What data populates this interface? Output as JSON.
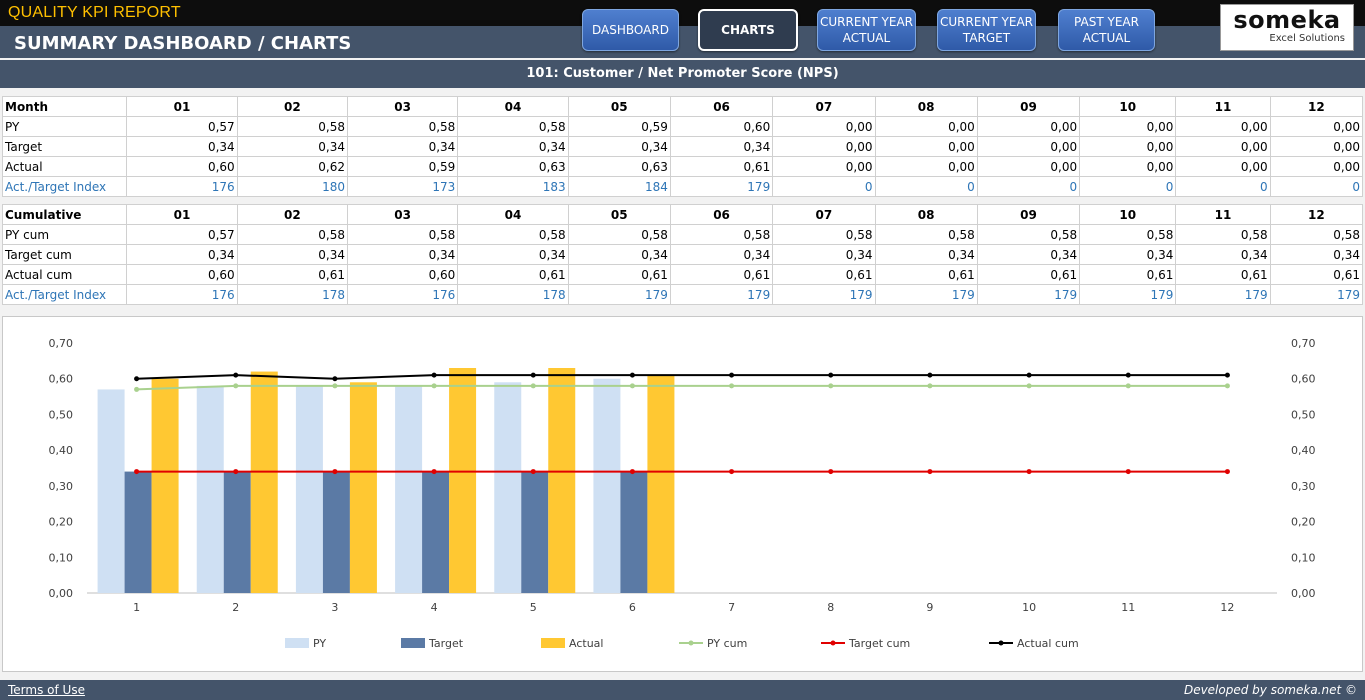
{
  "header": {
    "app_title": "QUALITY KPI REPORT",
    "page_title": "SUMMARY DASHBOARD / CHARTS",
    "nav": [
      {
        "label": "DASHBOARD",
        "active": false
      },
      {
        "label": "CHARTS",
        "active": true
      },
      {
        "label": "CURRENT YEAR ACTUAL",
        "active": false
      },
      {
        "label": "CURRENT YEAR TARGET",
        "active": false
      },
      {
        "label": "PAST YEAR ACTUAL",
        "active": false
      }
    ],
    "logo": {
      "brand": "someka",
      "sub": "Excel Solutions"
    }
  },
  "kpi_title": "101: Customer / Net Promoter Score (NPS)",
  "monthly": {
    "header": "Month",
    "months": [
      "01",
      "02",
      "03",
      "04",
      "05",
      "06",
      "07",
      "08",
      "09",
      "10",
      "11",
      "12"
    ],
    "rows": [
      {
        "label": "PY",
        "values": [
          "0,57",
          "0,58",
          "0,58",
          "0,58",
          "0,59",
          "0,60",
          "0,00",
          "0,00",
          "0,00",
          "0,00",
          "0,00",
          "0,00"
        ]
      },
      {
        "label": "Target",
        "values": [
          "0,34",
          "0,34",
          "0,34",
          "0,34",
          "0,34",
          "0,34",
          "0,00",
          "0,00",
          "0,00",
          "0,00",
          "0,00",
          "0,00"
        ]
      },
      {
        "label": "Actual",
        "values": [
          "0,60",
          "0,62",
          "0,59",
          "0,63",
          "0,63",
          "0,61",
          "0,00",
          "0,00",
          "0,00",
          "0,00",
          "0,00",
          "0,00"
        ]
      },
      {
        "label": "Act./Target Index",
        "values": [
          "176",
          "180",
          "173",
          "183",
          "184",
          "179",
          "0",
          "0",
          "0",
          "0",
          "0",
          "0"
        ]
      }
    ]
  },
  "cumulative": {
    "header": "Cumulative",
    "months": [
      "01",
      "02",
      "03",
      "04",
      "05",
      "06",
      "07",
      "08",
      "09",
      "10",
      "11",
      "12"
    ],
    "rows": [
      {
        "label": "PY cum",
        "values": [
          "0,57",
          "0,58",
          "0,58",
          "0,58",
          "0,58",
          "0,58",
          "0,58",
          "0,58",
          "0,58",
          "0,58",
          "0,58",
          "0,58"
        ]
      },
      {
        "label": "Target cum",
        "values": [
          "0,34",
          "0,34",
          "0,34",
          "0,34",
          "0,34",
          "0,34",
          "0,34",
          "0,34",
          "0,34",
          "0,34",
          "0,34",
          "0,34"
        ]
      },
      {
        "label": "Actual cum",
        "values": [
          "0,60",
          "0,61",
          "0,60",
          "0,61",
          "0,61",
          "0,61",
          "0,61",
          "0,61",
          "0,61",
          "0,61",
          "0,61",
          "0,61"
        ]
      },
      {
        "label": "Act./Target Index",
        "values": [
          "176",
          "178",
          "176",
          "178",
          "179",
          "179",
          "179",
          "179",
          "179",
          "179",
          "179",
          "179"
        ]
      }
    ]
  },
  "chart_data": {
    "type": "bar",
    "categories": [
      "1",
      "2",
      "3",
      "4",
      "5",
      "6",
      "7",
      "8",
      "9",
      "10",
      "11",
      "12"
    ],
    "ylim": [
      0,
      0.7
    ],
    "yticks": [
      "0,00",
      "0,10",
      "0,20",
      "0,30",
      "0,40",
      "0,50",
      "0,60",
      "0,70"
    ],
    "grid": false,
    "legend_position": "bottom",
    "series": [
      {
        "name": "PY",
        "kind": "bar",
        "color": "#cfe0f3",
        "values": [
          0.57,
          0.58,
          0.58,
          0.58,
          0.59,
          0.6,
          0,
          0,
          0,
          0,
          0,
          0
        ]
      },
      {
        "name": "Target",
        "kind": "bar",
        "color": "#5b7aa5",
        "values": [
          0.34,
          0.34,
          0.34,
          0.34,
          0.34,
          0.34,
          0,
          0,
          0,
          0,
          0,
          0
        ]
      },
      {
        "name": "Actual",
        "kind": "bar",
        "color": "#ffc832",
        "values": [
          0.6,
          0.62,
          0.59,
          0.63,
          0.63,
          0.61,
          0,
          0,
          0,
          0,
          0,
          0
        ]
      },
      {
        "name": "PY cum",
        "kind": "line",
        "color": "#a9d18e",
        "values": [
          0.57,
          0.58,
          0.58,
          0.58,
          0.58,
          0.58,
          0.58,
          0.58,
          0.58,
          0.58,
          0.58,
          0.58
        ]
      },
      {
        "name": "Target cum",
        "kind": "line",
        "color": "#e00000",
        "values": [
          0.34,
          0.34,
          0.34,
          0.34,
          0.34,
          0.34,
          0.34,
          0.34,
          0.34,
          0.34,
          0.34,
          0.34
        ]
      },
      {
        "name": "Actual cum",
        "kind": "line",
        "color": "#000000",
        "values": [
          0.6,
          0.61,
          0.6,
          0.61,
          0.61,
          0.61,
          0.61,
          0.61,
          0.61,
          0.61,
          0.61,
          0.61
        ]
      }
    ]
  },
  "footer": {
    "terms": "Terms of Use",
    "developer": "Developed by someka.net ©"
  }
}
